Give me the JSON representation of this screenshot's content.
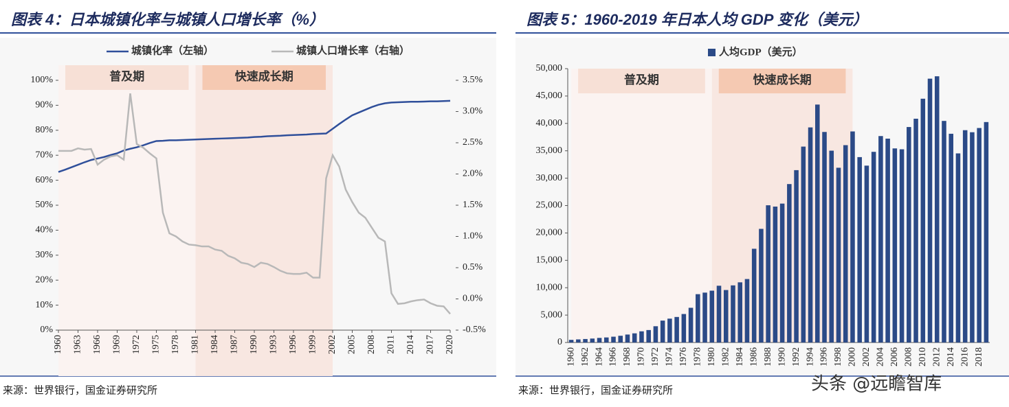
{
  "watermark": "头条 @远瞻智库",
  "chart_data": [
    {
      "type": "line",
      "title": "图表 4：日本城镇化率与城镇人口增长率（%）",
      "source": "来源：世界银行，国金证券研究所",
      "legend": "top",
      "x": [
        1960,
        1961,
        1962,
        1963,
        1964,
        1965,
        1966,
        1967,
        1968,
        1969,
        1970,
        1971,
        1972,
        1973,
        1974,
        1975,
        1976,
        1977,
        1978,
        1979,
        1980,
        1981,
        1982,
        1983,
        1984,
        1985,
        1986,
        1987,
        1988,
        1989,
        1990,
        1991,
        1992,
        1993,
        1994,
        1995,
        1996,
        1997,
        1998,
        1999,
        2000,
        2001,
        2002,
        2003,
        2004,
        2005,
        2006,
        2007,
        2008,
        2009,
        2010,
        2011,
        2012,
        2013,
        2014,
        2015,
        2016,
        2017,
        2018,
        2019,
        2020
      ],
      "xlim": [
        1960,
        2020
      ],
      "xticks": [
        1960,
        1963,
        1966,
        1969,
        1972,
        1975,
        1978,
        1981,
        1984,
        1987,
        1990,
        1993,
        1996,
        1999,
        2002,
        2005,
        2008,
        2011,
        2014,
        2017,
        2020
      ],
      "ylim": [
        0,
        100
      ],
      "yticks": [
        {
          "value": 0,
          "label": "0%"
        },
        {
          "value": 10,
          "label": "10%"
        },
        {
          "value": 20,
          "label": "20%"
        },
        {
          "value": 30,
          "label": "30%"
        },
        {
          "value": 40,
          "label": "40%"
        },
        {
          "value": 50,
          "label": "50%"
        },
        {
          "value": 60,
          "label": "60%"
        },
        {
          "value": 70,
          "label": "70%"
        },
        {
          "value": 80,
          "label": "80%"
        },
        {
          "value": 90,
          "label": "90%"
        },
        {
          "value": 100,
          "label": "100%"
        }
      ],
      "y2lim": [
        -0.5,
        3.5
      ],
      "y2ticks": [
        {
          "value": -0.5,
          "label": "-0.5%"
        },
        {
          "value": 0,
          "label": "0.0%"
        },
        {
          "value": 0.5,
          "label": "0.5%"
        },
        {
          "value": 1,
          "label": "1.0%"
        },
        {
          "value": 1.5,
          "label": "1.5%"
        },
        {
          "value": 2,
          "label": "2.0%"
        },
        {
          "value": 2.5,
          "label": "2.5%"
        },
        {
          "value": 3,
          "label": "3.0%"
        },
        {
          "value": 3.5,
          "label": "3.5%"
        }
      ],
      "spans": [
        {
          "label": "普及期",
          "start": 1960,
          "end": 1981,
          "color": "#fbf3f1",
          "label_color": "#f7e0d6"
        },
        {
          "label": "快速成长期",
          "start": 1981,
          "end": 2002,
          "color": "#f8e7e1",
          "label_color": "#f5c9b2"
        }
      ],
      "series": [
        {
          "name": "城镇化率（左轴）",
          "color": "#2f4f9a",
          "values": [
            63.3,
            64.2,
            65.2,
            66.2,
            67.2,
            68.1,
            68.7,
            69.3,
            70.1,
            70.8,
            71.9,
            72.6,
            73.2,
            74.0,
            74.9,
            75.7,
            75.8,
            76.0,
            76.0,
            76.1,
            76.2,
            76.3,
            76.4,
            76.5,
            76.6,
            76.7,
            76.8,
            76.9,
            77.0,
            77.1,
            77.3,
            77.4,
            77.6,
            77.7,
            77.8,
            78.0,
            78.1,
            78.2,
            78.3,
            78.5,
            78.6,
            78.7,
            80.6,
            82.5,
            84.3,
            86.0,
            87.1,
            88.2,
            89.3,
            90.2,
            90.8,
            91.1,
            91.2,
            91.3,
            91.4,
            91.4,
            91.5,
            91.6,
            91.6,
            91.7,
            91.8
          ]
        },
        {
          "name": "城镇人口增长率（右轴）",
          "color": "#b8b8b8",
          "axis": "y2",
          "values": [
            2.37,
            2.37,
            2.37,
            2.41,
            2.39,
            2.4,
            2.15,
            2.23,
            2.28,
            2.3,
            2.23,
            3.29,
            2.48,
            2.42,
            2.33,
            2.25,
            1.38,
            1.05,
            1.0,
            0.92,
            0.87,
            0.86,
            0.84,
            0.84,
            0.79,
            0.77,
            0.69,
            0.65,
            0.58,
            0.56,
            0.51,
            0.58,
            0.56,
            0.51,
            0.45,
            0.41,
            0.4,
            0.4,
            0.42,
            0.34,
            0.34,
            1.93,
            2.3,
            2.12,
            1.75,
            1.55,
            1.38,
            1.3,
            1.14,
            0.98,
            0.92,
            0.09,
            -0.08,
            -0.07,
            -0.04,
            -0.02,
            -0.01,
            -0.07,
            -0.11,
            -0.12,
            -0.24
          ]
        }
      ]
    },
    {
      "type": "bar",
      "title": "图表 5：1960-2019 年日本人均 GDP 变化（美元）",
      "source": "来源：世界银行，国金证券研究所",
      "legend": "top",
      "categories": [
        "1960",
        null,
        "1962",
        null,
        "1964",
        null,
        "1966",
        null,
        "1968",
        null,
        "1970",
        null,
        "1972",
        null,
        "1974",
        null,
        "1976",
        null,
        "1978",
        null,
        "1980",
        null,
        "1982",
        null,
        "1984",
        null,
        "1986",
        null,
        "1988",
        null,
        "1990",
        null,
        "1992",
        null,
        "1994",
        null,
        "1996",
        null,
        "1998",
        null,
        "2000",
        null,
        "2002",
        null,
        "2004",
        null,
        "2006",
        null,
        "2008",
        null,
        "2010",
        null,
        "2012",
        null,
        "2014",
        null,
        "2016",
        null,
        "2018",
        null
      ],
      "ylim": [
        0,
        50000
      ],
      "yticks": [
        0,
        {
          "value": 5000,
          "label": "5,000"
        },
        {
          "value": 10000,
          "label": "10,000"
        },
        {
          "value": 15000,
          "label": "15,000"
        },
        {
          "value": 20000,
          "label": "20,000"
        },
        {
          "value": 25000,
          "label": "25,000"
        },
        {
          "value": 30000,
          "label": "30,000"
        },
        {
          "value": 35000,
          "label": "35,000"
        },
        {
          "value": 40000,
          "label": "40,000"
        },
        {
          "value": 45000,
          "label": "45,000"
        },
        {
          "value": 50000,
          "label": "50,000"
        }
      ],
      "spans": [
        {
          "label": "普及期",
          "start": 1960,
          "end": 1980,
          "color": "#fbf3f1",
          "label_color": "#f7e0d6"
        },
        {
          "label": "快速成长期",
          "start": 1980,
          "end": 2000,
          "color": "#f8e7e1",
          "label_color": "#f5c9b2"
        }
      ],
      "series": [
        {
          "name": "人均GDP（美元）",
          "color": "#2b4a87",
          "values": [
            479,
            564,
            634,
            718,
            836,
            919,
            1058,
            1228,
            1450,
            1669,
            2037,
            2272,
            2967,
            3997,
            4354,
            4659,
            5198,
            6335,
            8821,
            9105,
            9463,
            10361,
            9578,
            10425,
            10984,
            11585,
            17112,
            20745,
            25052,
            24813,
            25359,
            28925,
            31465,
            35766,
            39269,
            43440,
            38437,
            35022,
            31903,
            36027,
            38532,
            33846,
            32289,
            34808,
            37689,
            37218,
            35434,
            35275,
            39339,
            40855,
            44508,
            48168,
            48603,
            40454,
            38109,
            34524,
            38762,
            38387,
            39159,
            40247
          ]
        }
      ]
    }
  ]
}
